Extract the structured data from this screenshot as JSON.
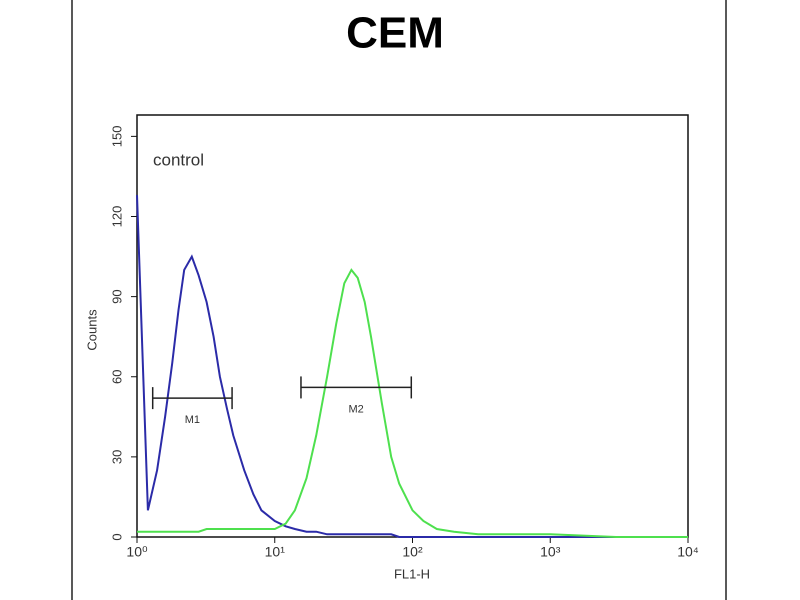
{
  "chart_data": {
    "type": "line",
    "title": "CEM",
    "xlabel": "FL1-H",
    "ylabel": "Counts",
    "annotation": "control",
    "xscale": "log",
    "xlim": [
      1,
      10000
    ],
    "ylim": [
      0,
      158
    ],
    "xticks": [
      {
        "value": 1,
        "label": "10⁰"
      },
      {
        "value": 10,
        "label": "10¹"
      },
      {
        "value": 100,
        "label": "10²"
      },
      {
        "value": 1000,
        "label": "10³"
      },
      {
        "value": 10000,
        "label": "10⁴"
      }
    ],
    "yticks": [
      0,
      30,
      60,
      90,
      120,
      150
    ],
    "x": [
      1,
      1.2,
      1.4,
      1.6,
      1.8,
      2,
      2.2,
      2.5,
      2.8,
      3.2,
      3.6,
      4,
      4.5,
      5,
      6,
      7,
      8,
      10,
      12,
      14,
      17,
      20,
      24,
      28,
      32,
      36,
      40,
      45,
      50,
      60,
      70,
      80,
      100,
      120,
      150,
      200,
      300,
      500,
      1000,
      3000,
      10000
    ],
    "series": [
      {
        "color": "#2b2ba8",
        "values": [
          128,
          10,
          25,
          45,
          65,
          85,
          100,
          105,
          98,
          88,
          75,
          60,
          48,
          38,
          25,
          16,
          10,
          6,
          4,
          3,
          2,
          2,
          1,
          1,
          1,
          1,
          1,
          1,
          1,
          1,
          1,
          0,
          0,
          0,
          0,
          0,
          0,
          0,
          0,
          0,
          0
        ]
      },
      {
        "color": "#4ee04e",
        "values": [
          2,
          2,
          2,
          2,
          2,
          2,
          2,
          2,
          2,
          3,
          3,
          3,
          3,
          3,
          3,
          3,
          3,
          3,
          5,
          10,
          22,
          38,
          60,
          80,
          95,
          100,
          97,
          88,
          75,
          50,
          30,
          20,
          10,
          6,
          3,
          2,
          1,
          1,
          1,
          0,
          0
        ]
      }
    ],
    "markers": [
      {
        "label": "M1",
        "range": [
          1.3,
          4.9
        ],
        "y": 52
      },
      {
        "label": "M2",
        "range": [
          15.5,
          98
        ],
        "y": 56
      }
    ]
  }
}
